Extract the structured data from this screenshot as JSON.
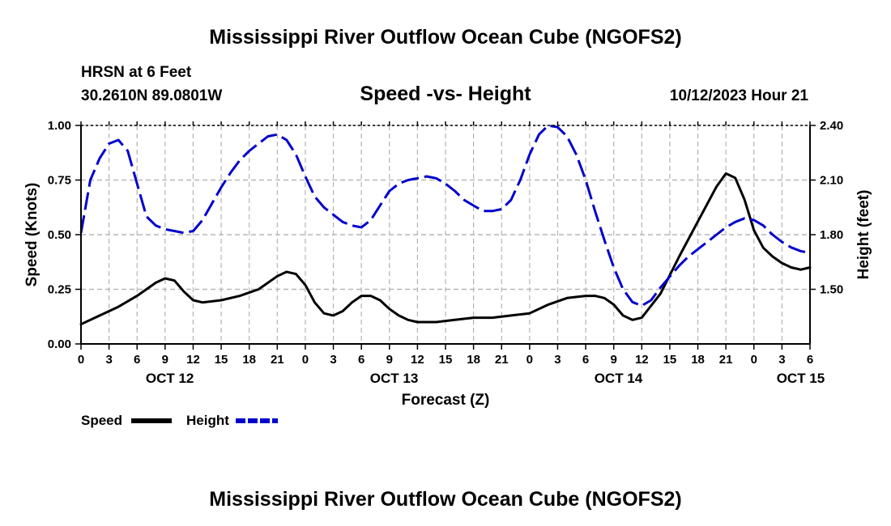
{
  "chart_data": {
    "type": "line",
    "title": "Mississippi River Outflow Ocean Cube (NGOFS2)",
    "footer_title": "Mississippi River Outflow Ocean Cube (NGOFS2)",
    "station": "HRSN at 6 Feet",
    "coords": "30.2610N  89.0801W",
    "subtitle": "Speed -vs- Height",
    "timestamp": "10/12/2023 Hour 21",
    "xlabel": "Forecast (Z)",
    "ylabel_left": "Speed (Knots)",
    "ylabel_right": "Height (feet)",
    "x_unit": "hours since Oct 12 00Z",
    "xlim": [
      0,
      78
    ],
    "ylim_left": [
      0,
      1.0
    ],
    "ylim_right": [
      1.2,
      2.4
    ],
    "x_ticks": [
      0,
      3,
      6,
      9,
      12,
      15,
      18,
      21,
      24,
      27,
      30,
      33,
      36,
      39,
      42,
      45,
      48,
      51,
      54,
      57,
      60,
      63,
      66,
      69,
      72,
      75,
      78
    ],
    "x_tick_labels": [
      "0",
      "3",
      "6",
      "9",
      "12",
      "15",
      "18",
      "21",
      "0",
      "3",
      "6",
      "9",
      "12",
      "15",
      "18",
      "21",
      "0",
      "3",
      "6",
      "9",
      "12",
      "15",
      "18",
      "21",
      "0",
      "3",
      "6"
    ],
    "day_labels": [
      {
        "x": 9.5,
        "label": "OCT 12"
      },
      {
        "x": 33.5,
        "label": "OCT 13"
      },
      {
        "x": 57.5,
        "label": "OCT 14"
      },
      {
        "x": 77,
        "label": "OCT 15"
      }
    ],
    "left_ticks": [
      {
        "value": 0.0,
        "label": "0.00"
      },
      {
        "value": 0.25,
        "label": "0.25"
      },
      {
        "value": 0.5,
        "label": "0.50"
      },
      {
        "value": 0.75,
        "label": "0.75"
      },
      {
        "value": 1.0,
        "label": "1.00"
      }
    ],
    "right_ticks": [
      {
        "value": 1.5,
        "label": "1.50"
      },
      {
        "value": 1.8,
        "label": "1.80"
      },
      {
        "value": 2.1,
        "label": "2.10"
      },
      {
        "value": 2.4,
        "label": "2.40"
      }
    ],
    "grid": true,
    "series": [
      {
        "name": "Speed",
        "axis": "left",
        "color": "#000000",
        "dash": "solid",
        "x": [
          0,
          2,
          4,
          6,
          8,
          9,
          10,
          11,
          12,
          13,
          15,
          17,
          19,
          21,
          22,
          23,
          24,
          25,
          26,
          27,
          28,
          29,
          30,
          31,
          32,
          33,
          34,
          35,
          36,
          38,
          40,
          42,
          44,
          46,
          48,
          50,
          52,
          54,
          55,
          56,
          57,
          58,
          59,
          60,
          62,
          64,
          66,
          68,
          69,
          70,
          71,
          72,
          73,
          74,
          75,
          76,
          77,
          78
        ],
        "values": [
          0.09,
          0.13,
          0.17,
          0.22,
          0.28,
          0.3,
          0.29,
          0.24,
          0.2,
          0.19,
          0.2,
          0.22,
          0.25,
          0.31,
          0.33,
          0.32,
          0.27,
          0.19,
          0.14,
          0.13,
          0.15,
          0.19,
          0.22,
          0.22,
          0.2,
          0.16,
          0.13,
          0.11,
          0.1,
          0.1,
          0.11,
          0.12,
          0.12,
          0.13,
          0.14,
          0.18,
          0.21,
          0.22,
          0.22,
          0.21,
          0.18,
          0.13,
          0.11,
          0.12,
          0.23,
          0.4,
          0.56,
          0.72,
          0.78,
          0.76,
          0.66,
          0.52,
          0.44,
          0.4,
          0.37,
          0.35,
          0.34,
          0.35
        ]
      },
      {
        "name": "Height",
        "axis": "right",
        "color": "#0000cc",
        "dash": "dashed",
        "x": [
          0,
          1,
          2,
          3,
          4,
          5,
          6,
          7,
          8,
          9,
          10,
          11,
          12,
          13,
          14,
          15,
          16,
          17,
          18,
          19,
          20,
          21,
          22,
          23,
          24,
          25,
          26,
          27,
          28,
          29,
          30,
          31,
          32,
          33,
          34,
          35,
          36,
          37,
          38,
          39,
          40,
          41,
          42,
          43,
          44,
          45,
          46,
          47,
          48,
          49,
          50,
          51,
          52,
          53,
          54,
          55,
          56,
          57,
          58,
          59,
          60,
          61,
          62,
          63,
          64,
          65,
          66,
          67,
          68,
          69,
          70,
          71,
          72,
          73,
          74,
          75,
          76,
          77,
          78
        ],
        "values": [
          1.81,
          2.1,
          2.22,
          2.3,
          2.32,
          2.26,
          2.08,
          1.9,
          1.85,
          1.83,
          1.82,
          1.81,
          1.82,
          1.88,
          1.97,
          2.06,
          2.14,
          2.21,
          2.26,
          2.3,
          2.34,
          2.35,
          2.32,
          2.24,
          2.12,
          2.01,
          1.95,
          1.91,
          1.87,
          1.85,
          1.84,
          1.88,
          1.96,
          2.04,
          2.08,
          2.1,
          2.11,
          2.12,
          2.11,
          2.08,
          2.04,
          1.99,
          1.96,
          1.93,
          1.93,
          1.94,
          1.99,
          2.1,
          2.24,
          2.35,
          2.4,
          2.39,
          2.34,
          2.24,
          2.1,
          1.93,
          1.77,
          1.62,
          1.5,
          1.43,
          1.41,
          1.44,
          1.51,
          1.57,
          1.63,
          1.68,
          1.72,
          1.76,
          1.8,
          1.84,
          1.87,
          1.89,
          1.88,
          1.85,
          1.8,
          1.76,
          1.73,
          1.71,
          1.7
        ]
      }
    ],
    "legend": [
      {
        "label": "Speed",
        "color": "#000000",
        "dash": "solid"
      },
      {
        "label": "Height",
        "color": "#0000cc",
        "dash": "dashed"
      }
    ]
  }
}
